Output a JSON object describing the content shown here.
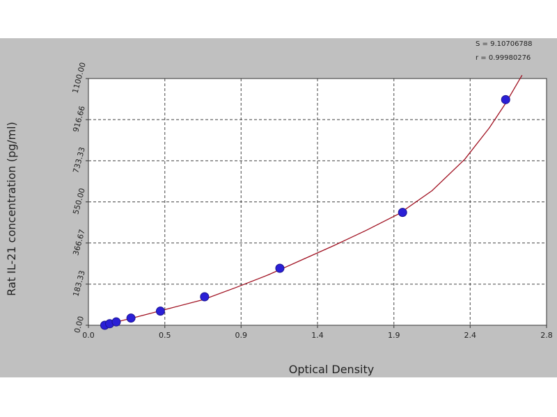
{
  "chart_data": {
    "type": "scatter",
    "title": "",
    "xlabel": "Optical Density",
    "ylabel": "Rat IL-21 concentration (pg/ml)",
    "xlim": [
      0.0,
      2.8
    ],
    "ylim": [
      0.0,
      1100.0
    ],
    "xticks": [
      "0.0",
      "0.5",
      "0.9",
      "1.4",
      "1.9",
      "2.4",
      "2.8"
    ],
    "xtick_values": [
      0.0,
      0.467,
      0.933,
      1.4,
      1.867,
      2.333,
      2.8
    ],
    "yticks": [
      "0.00",
      "183.33",
      "366.67",
      "550.00",
      "733.33",
      "916.66",
      "1100.00"
    ],
    "ytick_values": [
      0.0,
      183.33,
      366.67,
      550.0,
      733.33,
      916.66,
      1100.0
    ],
    "grid": true,
    "stats": [
      "S = 9.10706788",
      "r = 0.99980276"
    ],
    "points": [
      {
        "x": 0.1,
        "y": 0
      },
      {
        "x": 0.13,
        "y": 7
      },
      {
        "x": 0.17,
        "y": 15
      },
      {
        "x": 0.26,
        "y": 32
      },
      {
        "x": 0.44,
        "y": 63
      },
      {
        "x": 0.71,
        "y": 127
      },
      {
        "x": 1.17,
        "y": 254
      },
      {
        "x": 1.92,
        "y": 503
      },
      {
        "x": 2.55,
        "y": 1006
      }
    ],
    "fit_curve": {
      "x": [
        0.1,
        0.3,
        0.5,
        0.7,
        0.9,
        1.1,
        1.3,
        1.5,
        1.7,
        1.9,
        2.1,
        2.3,
        2.45,
        2.55,
        2.65
      ],
      "y": [
        2,
        38,
        76,
        114,
        168,
        225,
        290,
        355,
        424,
        498,
        600,
        740,
        880,
        990,
        1115
      ]
    },
    "colors": {
      "background": "#c0c0c0",
      "plot_area": "#ffffff",
      "point_fill": "#2a1fd6",
      "curve": "#a01020",
      "grid": "#444444"
    }
  }
}
